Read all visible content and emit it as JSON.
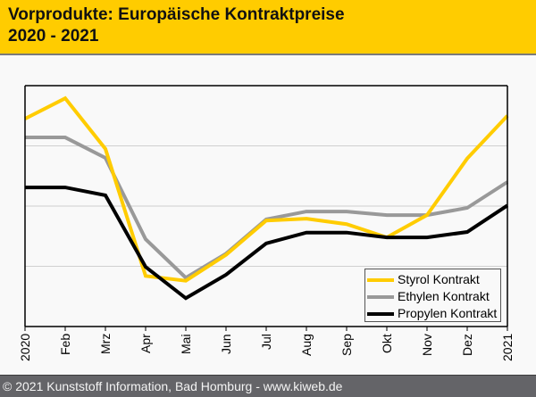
{
  "header": {
    "title_line1": "Vorprodukte: Europäische Kontraktpreise",
    "title_line2": "2020 - 2021"
  },
  "footer": {
    "text": "© 2021 Kunststoff Information, Bad Homburg - www.kiweb.de"
  },
  "colors": {
    "header_bg": "#ffcc00",
    "footer_bg": "#646468",
    "styrol": "#ffcc00",
    "ethylen": "#999999",
    "propylen": "#000000"
  },
  "chart_data": {
    "type": "line",
    "title": "Vorprodukte: Europäische Kontraktpreise 2020 - 2021",
    "xlabel": "",
    "ylabel": "",
    "categories": [
      "2020",
      "Feb",
      "Mrz",
      "Apr",
      "Mai",
      "Jun",
      "Jul",
      "Aug",
      "Sep",
      "Okt",
      "Nov",
      "Dez",
      "2021"
    ],
    "ylim": [
      0,
      4
    ],
    "y_unit_note": "relative (no y-axis tick labels shown)",
    "grid": true,
    "legend_position": "bottom-right",
    "series": [
      {
        "name": "Styrol Kontrakt",
        "color": "#ffcc00",
        "values": [
          3.45,
          3.79,
          2.95,
          0.84,
          0.76,
          1.19,
          1.76,
          1.79,
          1.7,
          1.48,
          1.85,
          2.79,
          3.5
        ]
      },
      {
        "name": "Ethylen Kontrakt",
        "color": "#999999",
        "values": [
          3.14,
          3.14,
          2.8,
          1.45,
          0.81,
          1.21,
          1.78,
          1.91,
          1.91,
          1.85,
          1.85,
          1.97,
          2.4
        ]
      },
      {
        "name": "Propylen Kontrakt",
        "color": "#000000",
        "values": [
          2.31,
          2.31,
          2.18,
          0.99,
          0.47,
          0.86,
          1.38,
          1.56,
          1.56,
          1.48,
          1.48,
          1.57,
          2.01
        ]
      }
    ]
  }
}
